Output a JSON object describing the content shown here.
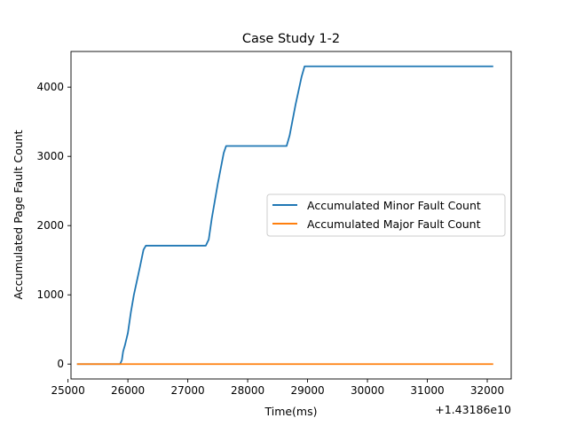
{
  "chart_data": {
    "type": "line",
    "title": "Case Study 1-2",
    "xlabel": "Time(ms)",
    "ylabel": "Accumulated Page Fault Count",
    "x_offset_label": "+1.43186e10",
    "xlim": [
      25050,
      32400
    ],
    "ylim": [
      -215,
      4515
    ],
    "x_ticks": [
      25000,
      26000,
      27000,
      28000,
      29000,
      30000,
      31000,
      32000
    ],
    "y_ticks": [
      0,
      1000,
      2000,
      3000,
      4000
    ],
    "grid": false,
    "legend_position": "center-right",
    "colors": {
      "minor": "#1f77b4",
      "major": "#ff7f0e"
    },
    "series": [
      {
        "name": "Accumulated Minor Fault Count",
        "color": "#1f77b4",
        "x": [
          25150,
          25870,
          25900,
          25920,
          25950,
          26000,
          26050,
          26100,
          26200,
          26260,
          26300,
          27300,
          27350,
          27400,
          27500,
          27600,
          27640,
          27680,
          28650,
          28700,
          28800,
          28900,
          28950,
          29000,
          32100
        ],
        "y": [
          0,
          0,
          60,
          180,
          270,
          450,
          750,
          1000,
          1400,
          1650,
          1710,
          1710,
          1800,
          2100,
          2600,
          3050,
          3150,
          3150,
          3150,
          3300,
          3750,
          4150,
          4300,
          4300,
          4300
        ]
      },
      {
        "name": "Accumulated Major Fault Count",
        "color": "#ff7f0e",
        "x": [
          25150,
          32100
        ],
        "y": [
          0,
          0
        ]
      }
    ]
  }
}
